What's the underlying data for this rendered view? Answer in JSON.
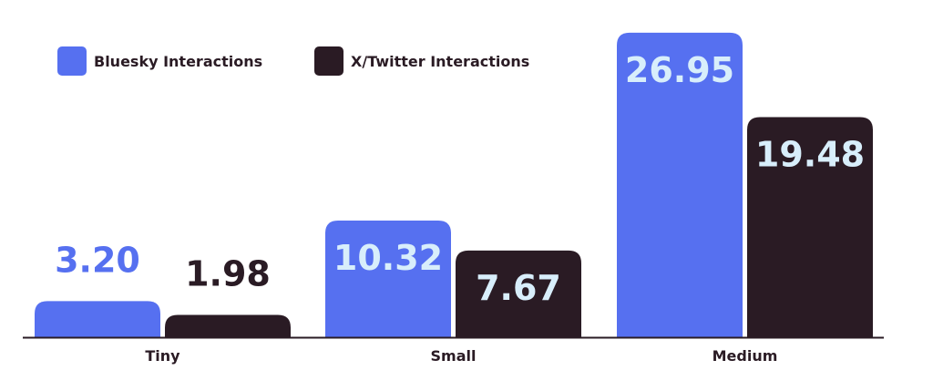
{
  "chart_data": {
    "type": "bar",
    "categories": [
      "Tiny",
      "Small",
      "Medium"
    ],
    "series": [
      {
        "name": "Bluesky Interactions",
        "values": [
          3.2,
          10.32,
          26.95
        ],
        "color": "#5670f0"
      },
      {
        "name": "X/Twitter Interactions",
        "values": [
          1.98,
          7.67,
          19.48
        ],
        "color": "#2a1b24"
      }
    ],
    "value_labels": [
      [
        "3.20",
        "10.32",
        "26.95"
      ],
      [
        "1.98",
        "7.67",
        "19.48"
      ]
    ],
    "inside_label_color": "#d8eefb",
    "legend_position": "top-left",
    "grid": false,
    "ylim": [
      0,
      27
    ]
  }
}
